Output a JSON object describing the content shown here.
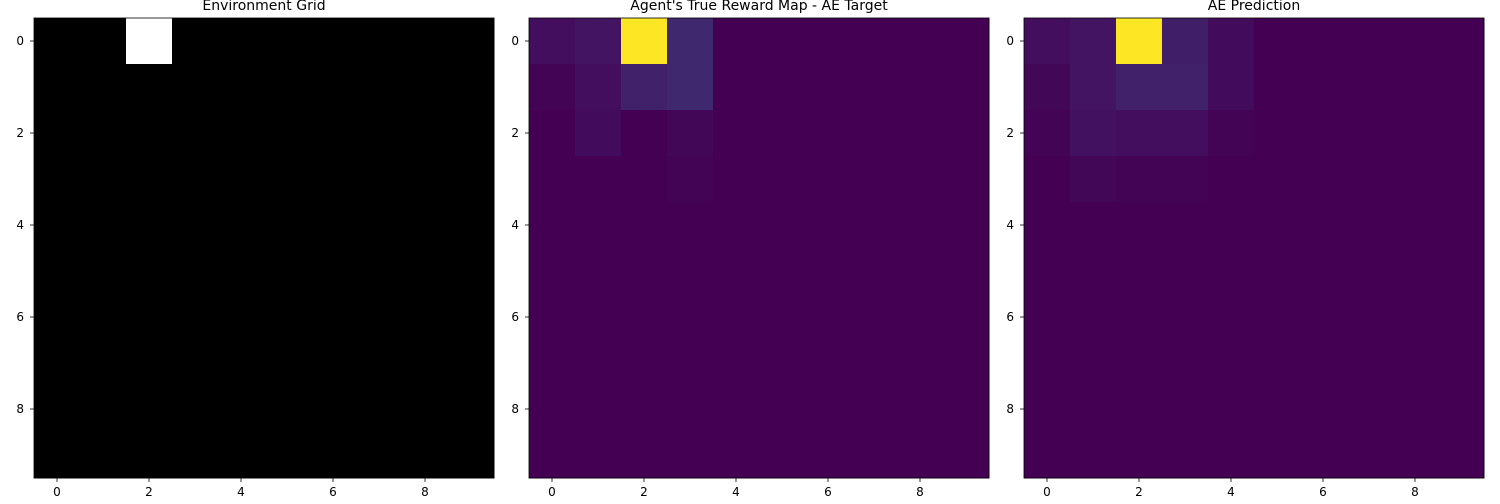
{
  "chart_data": [
    {
      "type": "heatmap",
      "title": "Environment Grid",
      "colormap": "gray",
      "xlabel": "",
      "ylabel": "",
      "x_ticks": [
        "0",
        "2",
        "4",
        "6",
        "8"
      ],
      "y_ticks": [
        "0",
        "2",
        "4",
        "6",
        "8"
      ],
      "grid": false,
      "values": [
        [
          0,
          0,
          1,
          0,
          0,
          0,
          0,
          0,
          0,
          0
        ],
        [
          0,
          0,
          0,
          0,
          0,
          0,
          0,
          0,
          0,
          0
        ],
        [
          0,
          0,
          0,
          0,
          0,
          0,
          0,
          0,
          0,
          0
        ],
        [
          0,
          0,
          0,
          0,
          0,
          0,
          0,
          0,
          0,
          0
        ],
        [
          0,
          0,
          0,
          0,
          0,
          0,
          0,
          0,
          0,
          0
        ],
        [
          0,
          0,
          0,
          0,
          0,
          0,
          0,
          0,
          0,
          0
        ],
        [
          0,
          0,
          0,
          0,
          0,
          0,
          0,
          0,
          0,
          0
        ],
        [
          0,
          0,
          0,
          0,
          0,
          0,
          0,
          0,
          0,
          0
        ],
        [
          0,
          0,
          0,
          0,
          0,
          0,
          0,
          0,
          0,
          0
        ],
        [
          0,
          0,
          0,
          0,
          0,
          0,
          0,
          0,
          0,
          0
        ]
      ]
    },
    {
      "type": "heatmap",
      "title": "Agent's True Reward Map - AE Target",
      "colormap": "viridis",
      "xlabel": "",
      "ylabel": "",
      "x_ticks": [
        "0",
        "2",
        "4",
        "6",
        "8"
      ],
      "y_ticks": [
        "0",
        "2",
        "4",
        "6",
        "8"
      ],
      "grid": false,
      "values": [
        [
          0.04,
          0.06,
          1.0,
          0.12,
          0.0,
          0.0,
          0.0,
          0.0,
          0.0,
          0.0
        ],
        [
          0.01,
          0.04,
          0.1,
          0.12,
          0.0,
          0.0,
          0.0,
          0.0,
          0.0,
          0.0
        ],
        [
          0.0,
          0.03,
          0.0,
          0.02,
          0.0,
          0.0,
          0.0,
          0.0,
          0.0,
          0.0
        ],
        [
          0.0,
          0.0,
          0.0,
          0.01,
          0.0,
          0.0,
          0.0,
          0.0,
          0.0,
          0.0
        ],
        [
          0.0,
          0.0,
          0.0,
          0.0,
          0.0,
          0.0,
          0.0,
          0.0,
          0.0,
          0.0
        ],
        [
          0.0,
          0.0,
          0.0,
          0.0,
          0.0,
          0.0,
          0.0,
          0.0,
          0.0,
          0.0
        ],
        [
          0.0,
          0.0,
          0.0,
          0.0,
          0.0,
          0.0,
          0.0,
          0.0,
          0.0,
          0.0
        ],
        [
          0.0,
          0.0,
          0.0,
          0.0,
          0.0,
          0.0,
          0.0,
          0.0,
          0.0,
          0.0
        ],
        [
          0.0,
          0.0,
          0.0,
          0.0,
          0.0,
          0.0,
          0.0,
          0.0,
          0.0,
          0.0
        ],
        [
          0.0,
          0.0,
          0.0,
          0.0,
          0.0,
          0.0,
          0.0,
          0.0,
          0.0,
          0.0
        ]
      ]
    },
    {
      "type": "heatmap",
      "title": "AE Prediction",
      "colormap": "viridis",
      "xlabel": "",
      "ylabel": "",
      "x_ticks": [
        "0",
        "2",
        "4",
        "6",
        "8"
      ],
      "y_ticks": [
        "0",
        "2",
        "4",
        "6",
        "8"
      ],
      "grid": false,
      "values": [
        [
          0.04,
          0.06,
          1.0,
          0.09,
          0.03,
          0.0,
          0.0,
          0.0,
          0.0,
          0.0
        ],
        [
          0.02,
          0.06,
          0.1,
          0.1,
          0.03,
          0.0,
          0.0,
          0.0,
          0.0,
          0.0
        ],
        [
          0.01,
          0.05,
          0.04,
          0.04,
          0.01,
          0.0,
          0.0,
          0.0,
          0.0,
          0.0
        ],
        [
          0.0,
          0.02,
          0.01,
          0.01,
          0.0,
          0.0,
          0.0,
          0.0,
          0.0,
          0.0
        ],
        [
          0.0,
          0.0,
          0.0,
          0.0,
          0.0,
          0.0,
          0.0,
          0.0,
          0.0,
          0.0
        ],
        [
          0.0,
          0.0,
          0.0,
          0.0,
          0.0,
          0.0,
          0.0,
          0.0,
          0.0,
          0.0
        ],
        [
          0.0,
          0.0,
          0.0,
          0.0,
          0.0,
          0.0,
          0.0,
          0.0,
          0.0,
          0.0
        ],
        [
          0.0,
          0.0,
          0.0,
          0.0,
          0.0,
          0.0,
          0.0,
          0.0,
          0.0,
          0.0
        ],
        [
          0.0,
          0.0,
          0.0,
          0.0,
          0.0,
          0.0,
          0.0,
          0.0,
          0.0,
          0.0
        ],
        [
          0.0,
          0.0,
          0.0,
          0.0,
          0.0,
          0.0,
          0.0,
          0.0,
          0.0,
          0.0
        ]
      ]
    }
  ]
}
